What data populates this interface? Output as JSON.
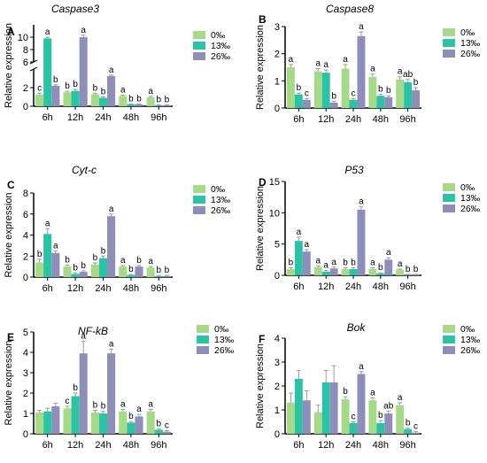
{
  "legend_labels": [
    "0‰",
    "13‰",
    "26‰"
  ],
  "colors": {
    "s0": "#a6d98a",
    "s1": "#2cc2a6",
    "s2": "#8d8fb8",
    "axis": "#000000",
    "error": "#9a9a9a"
  },
  "chart_data": [
    {
      "type": "bar",
      "panel": "A",
      "title": "Caspase3",
      "ylabel": "Relative expression",
      "categories": [
        "6h",
        "12h",
        "24h",
        "48h",
        "96h"
      ],
      "broken_axis": true,
      "lower_range": [
        0,
        4
      ],
      "upper_range": [
        6,
        12
      ],
      "yticks_lower": [
        0,
        2
      ],
      "yticks_upper": [
        6,
        8,
        10
      ],
      "series": [
        {
          "name": "0‰",
          "values": [
            1.25,
            1.5,
            1.3,
            1.1,
            0.95
          ],
          "errors": [
            0.15,
            0.1,
            0.1,
            0.1,
            0.1
          ],
          "letters": [
            "c",
            "b",
            "b",
            "a",
            "a"
          ]
        },
        {
          "name": "13‰",
          "values": [
            9.8,
            1.65,
            0.9,
            0.2,
            0.1
          ],
          "errors": [
            0.2,
            0.15,
            0.1,
            0.05,
            0.05
          ],
          "letters": [
            "a",
            "b",
            "b",
            "b",
            "b"
          ]
        },
        {
          "name": "26‰",
          "values": [
            2.2,
            10.0,
            3.25,
            0.2,
            0.1
          ],
          "errors": [
            0.1,
            0.3,
            0.1,
            0.05,
            0.05
          ],
          "letters": [
            "b",
            "a",
            "a",
            "b",
            "b"
          ]
        }
      ]
    },
    {
      "type": "bar",
      "panel": "B",
      "title": "Caspase8",
      "ylabel": "Relative expression",
      "categories": [
        "6h",
        "12h",
        "24h",
        "48h",
        "96h"
      ],
      "ylim": [
        0,
        3
      ],
      "yticks": [
        0,
        1,
        2,
        3
      ],
      "series": [
        {
          "name": "0‰",
          "values": [
            1.5,
            1.35,
            1.45,
            1.15,
            1.05
          ],
          "errors": [
            0.1,
            0.1,
            0.15,
            0.1,
            0.1
          ],
          "letters": [
            "a",
            "a",
            "a",
            "a",
            "a"
          ]
        },
        {
          "name": "13‰",
          "values": [
            0.5,
            1.3,
            0.3,
            0.45,
            0.95
          ],
          "errors": [
            0.05,
            0.1,
            0.05,
            0.05,
            0.1
          ],
          "letters": [
            "b",
            "a",
            "c",
            "b",
            "ab"
          ]
        },
        {
          "name": "26‰",
          "values": [
            0.3,
            0.2,
            2.65,
            0.4,
            0.65
          ],
          "errors": [
            0.05,
            0.05,
            0.15,
            0.05,
            0.1
          ],
          "letters": [
            "c",
            "b",
            "a",
            "b",
            "b"
          ]
        }
      ]
    },
    {
      "type": "bar",
      "panel": "C",
      "title": "Cyt-c",
      "ylabel": "Relative expression",
      "categories": [
        "6h",
        "12h",
        "24h",
        "48h",
        "96h"
      ],
      "ylim": [
        0,
        8
      ],
      "yticks": [
        0,
        2,
        4,
        6,
        8
      ],
      "series": [
        {
          "name": "0‰",
          "values": [
            1.4,
            1.0,
            1.2,
            1.0,
            0.9
          ],
          "errors": [
            0.3,
            0.15,
            0.15,
            0.1,
            0.1
          ],
          "letters": [
            "b",
            "b",
            "b",
            "a",
            "a"
          ]
        },
        {
          "name": "13‰",
          "values": [
            4.1,
            0.3,
            1.8,
            0.2,
            0.1
          ],
          "errors": [
            0.5,
            0.1,
            0.2,
            0.05,
            0.05
          ],
          "letters": [
            "a",
            "b",
            "b",
            "b",
            "b"
          ]
        },
        {
          "name": "26‰",
          "values": [
            2.3,
            0.5,
            5.8,
            1.0,
            0.1
          ],
          "errors": [
            0.2,
            0.1,
            0.2,
            0.1,
            0.05
          ],
          "letters": [
            "a",
            "b",
            "a",
            "b",
            "b"
          ]
        }
      ]
    },
    {
      "type": "bar",
      "panel": "D",
      "title": "P53",
      "ylabel": "Relative expression",
      "categories": [
        "6h",
        "12h",
        "24h",
        "48h",
        "96h"
      ],
      "ylim": [
        0,
        15
      ],
      "yticks": [
        0,
        5,
        10,
        15
      ],
      "series": [
        {
          "name": "0‰",
          "values": [
            1.0,
            1.3,
            1.0,
            1.0,
            0.9
          ],
          "errors": [
            0.2,
            0.2,
            0.2,
            0.2,
            0.1
          ],
          "letters": [
            "b",
            "a",
            "b",
            "a",
            "a"
          ]
        },
        {
          "name": "13‰",
          "values": [
            5.5,
            0.6,
            1.0,
            0.3,
            0.1
          ],
          "errors": [
            0.6,
            0.2,
            0.2,
            0.1,
            0.05
          ],
          "letters": [
            "a",
            "a",
            "b",
            "b",
            "b"
          ]
        },
        {
          "name": "26‰",
          "values": [
            3.8,
            1.1,
            10.5,
            2.5,
            0.1
          ],
          "errors": [
            0.3,
            0.2,
            0.5,
            0.3,
            0.05
          ],
          "letters": [
            "a",
            "a",
            "a",
            "a",
            "b"
          ]
        }
      ]
    },
    {
      "type": "bar",
      "panel": "E",
      "title": "NF-kB",
      "ylabel": "Relative expression",
      "categories": [
        "6h",
        "12h",
        "24h",
        "48h",
        "96h"
      ],
      "ylim": [
        0,
        5
      ],
      "yticks": [
        0,
        1,
        2,
        3,
        4,
        5
      ],
      "series": [
        {
          "name": "0‰",
          "values": [
            1.05,
            1.25,
            1.05,
            1.1,
            1.1
          ],
          "errors": [
            0.1,
            0.1,
            0.1,
            0.1,
            0.1
          ],
          "letters": [
            "",
            "c",
            "b",
            "a",
            "a"
          ]
        },
        {
          "name": "13‰",
          "values": [
            1.1,
            1.85,
            1.0,
            0.55,
            0.2
          ],
          "errors": [
            0.15,
            0.15,
            0.1,
            0.05,
            0.05
          ],
          "letters": [
            "",
            "b",
            "b",
            "b",
            "b"
          ]
        },
        {
          "name": "26‰",
          "values": [
            1.35,
            3.95,
            3.95,
            0.85,
            0.1
          ],
          "errors": [
            0.15,
            0.6,
            0.2,
            0.1,
            0.05
          ],
          "letters": [
            "",
            "a",
            "a",
            "a",
            "c"
          ]
        }
      ]
    },
    {
      "type": "bar",
      "panel": "F",
      "title": "Bok",
      "ylabel": "Relative expression",
      "categories": [
        "6h",
        "12h",
        "24h",
        "48h",
        "96h"
      ],
      "ylim": [
        0,
        4
      ],
      "yticks": [
        0,
        1,
        2,
        3,
        4
      ],
      "series": [
        {
          "name": "0‰",
          "values": [
            1.3,
            0.9,
            1.45,
            1.4,
            1.2
          ],
          "errors": [
            0.4,
            0.3,
            0.1,
            0.1,
            0.1
          ],
          "letters": [
            "",
            "",
            "b",
            "a",
            "a"
          ]
        },
        {
          "name": "13‰",
          "values": [
            2.3,
            2.15,
            0.45,
            0.45,
            0.2
          ],
          "errors": [
            0.35,
            0.5,
            0.05,
            0.1,
            0.05
          ],
          "letters": [
            "",
            "",
            "c",
            "b",
            "b"
          ]
        },
        {
          "name": "26‰",
          "values": [
            1.4,
            2.15,
            2.5,
            0.85,
            0.05
          ],
          "errors": [
            0.4,
            0.7,
            0.1,
            0.1,
            0.05
          ],
          "letters": [
            "",
            "",
            "a",
            "ab",
            "c"
          ]
        }
      ]
    }
  ]
}
